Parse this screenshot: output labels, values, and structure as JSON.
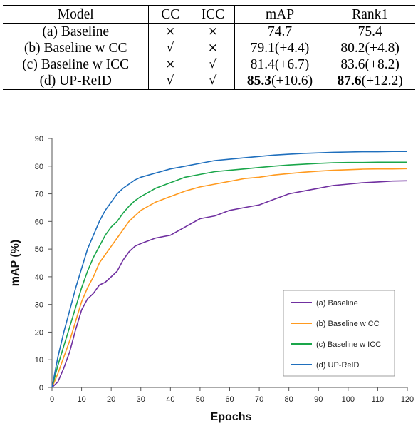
{
  "table": {
    "headers": [
      "Model",
      "CC",
      "ICC",
      "mAP",
      "Rank1"
    ],
    "rows": [
      {
        "model": "(a) Baseline",
        "cc": "×",
        "icc": "×",
        "map_bold": "",
        "map": "74.7",
        "rank_bold": "",
        "rank": "75.4"
      },
      {
        "model": "(b) Baseline w CC",
        "cc": "√",
        "icc": "×",
        "map_bold": "",
        "map": "79.1(+4.4)",
        "rank_bold": "",
        "rank": "80.2(+4.8)"
      },
      {
        "model": "(c) Baseline w ICC",
        "cc": "×",
        "icc": "√",
        "map_bold": "",
        "map": "81.4(+6.7)",
        "rank_bold": "",
        "rank": "83.6(+8.2)"
      },
      {
        "model": "(d) UP-ReID",
        "cc": "√",
        "icc": "√",
        "map_bold": "85.3",
        "map": "(+10.6)",
        "rank_bold": "87.6",
        "rank": "(+12.2)"
      }
    ]
  },
  "chart_data": {
    "type": "line",
    "xlabel": "Epochs",
    "ylabel": "mAP (%)",
    "xlim": [
      0,
      120
    ],
    "ylim": [
      0,
      90
    ],
    "xticks": [
      0,
      10,
      20,
      30,
      40,
      50,
      60,
      70,
      80,
      90,
      100,
      110,
      120
    ],
    "yticks": [
      0,
      10,
      20,
      30,
      40,
      50,
      60,
      70,
      80,
      90
    ],
    "legend_position": "bottom-right",
    "x": [
      0,
      2,
      4,
      6,
      8,
      10,
      12,
      14,
      16,
      18,
      20,
      22,
      24,
      26,
      28,
      30,
      35,
      40,
      45,
      50,
      55,
      60,
      65,
      70,
      75,
      80,
      85,
      90,
      95,
      100,
      105,
      110,
      115,
      120
    ],
    "series": [
      {
        "name": "(a) Baseline",
        "color": "#7030a0",
        "values": [
          0,
          2,
          7,
          13,
          21,
          28,
          32,
          34,
          37,
          38,
          40,
          42,
          46,
          49,
          51,
          52,
          54,
          55,
          58,
          61,
          62,
          64,
          65,
          66,
          68,
          70,
          71,
          72,
          73,
          73.5,
          74,
          74.3,
          74.6,
          74.7
        ]
      },
      {
        "name": "(b) Baseline w CC",
        "color": "#ff9a1f",
        "values": [
          0,
          5,
          11,
          17,
          24,
          31,
          36,
          40,
          45,
          48,
          51,
          54,
          57,
          60,
          62,
          64,
          67,
          69,
          71,
          72.5,
          73.5,
          74.5,
          75.5,
          76,
          76.8,
          77.3,
          77.8,
          78.2,
          78.5,
          78.7,
          78.9,
          79,
          79,
          79.1
        ]
      },
      {
        "name": "(c) Baseline w ICC",
        "color": "#1aa64a",
        "values": [
          0,
          8,
          15,
          22,
          29,
          36,
          42,
          47,
          51,
          55,
          58,
          60,
          63,
          65.5,
          67.5,
          69,
          72,
          74,
          76,
          77,
          78,
          78.5,
          79,
          79.5,
          80,
          80.4,
          80.7,
          81,
          81.2,
          81.3,
          81.3,
          81.4,
          81.4,
          81.4
        ]
      },
      {
        "name": "(d) UP-ReID",
        "color": "#1f6fbd",
        "values": [
          0,
          11,
          20,
          28,
          36,
          43,
          50,
          55,
          60,
          64,
          67,
          70,
          72,
          73.5,
          75,
          76,
          77.5,
          79,
          80,
          81,
          82,
          82.5,
          83,
          83.5,
          84,
          84.3,
          84.6,
          84.8,
          85,
          85.1,
          85.2,
          85.2,
          85.3,
          85.3
        ]
      }
    ]
  }
}
